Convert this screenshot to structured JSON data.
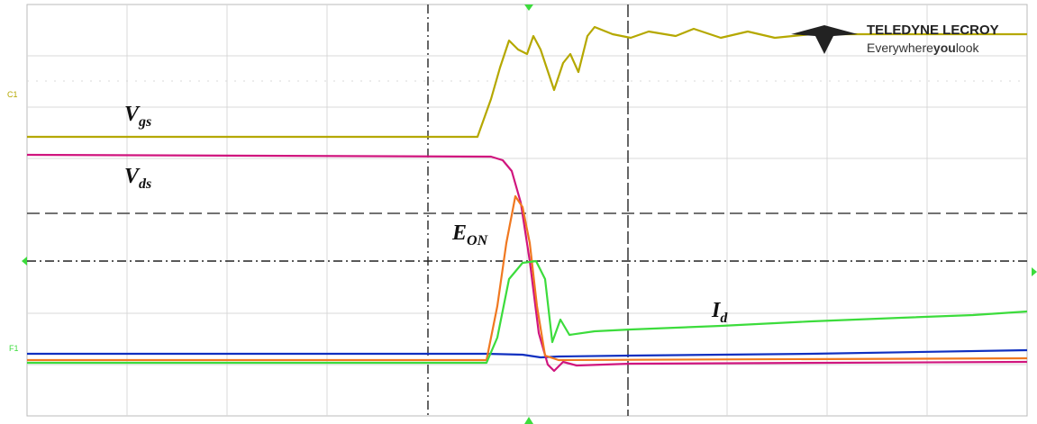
{
  "logo": {
    "brand": "TELEDYNE LECROY",
    "tagline_pre": "Everywhere",
    "tagline_bold": "you",
    "tagline_post": "look"
  },
  "trace_labels": [
    {
      "main": "V",
      "sub": "gs"
    },
    {
      "main": "V",
      "sub": "ds"
    },
    {
      "main": "E",
      "sub": "ON"
    },
    {
      "main": "I",
      "sub": "d"
    }
  ],
  "channel_markers": [
    "C1",
    "F1"
  ]
}
